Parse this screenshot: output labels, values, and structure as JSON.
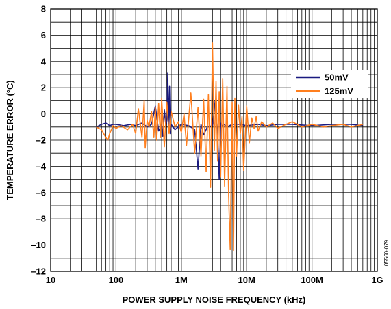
{
  "chart_data": {
    "type": "line",
    "xlabel": "POWER SUPPLY NOISE FREQUENCY (kHz)",
    "ylabel": "TEMPERATURE ERROR (°C)",
    "x_scale": "log",
    "xlim": [
      10,
      1000000
    ],
    "ylim": [
      -12,
      8
    ],
    "x_ticks": [
      10,
      100,
      1000,
      10000,
      100000,
      1000000
    ],
    "x_tick_labels": [
      "10",
      "100",
      "1M",
      "10M",
      "100M",
      "1G"
    ],
    "y_ticks": [
      -12,
      -10,
      -8,
      -6,
      -4,
      -2,
      0,
      2,
      4,
      6,
      8
    ],
    "y_tick_labels": [
      "–12",
      "–10",
      "–8",
      "–6",
      "–4",
      "–2",
      "0",
      "2",
      "4",
      "6",
      "8"
    ],
    "grid": true,
    "legend_position": "top-right",
    "figure_id": "05560-079",
    "series": [
      {
        "name": "50mV",
        "color": "#1a1a80",
        "x": [
          50,
          60,
          70,
          80,
          90,
          100,
          130,
          170,
          200,
          250,
          300,
          350,
          400,
          450,
          500,
          520,
          550,
          580,
          600,
          620,
          640,
          660,
          680,
          700,
          800,
          1000,
          1300,
          1600,
          1800,
          2000,
          2200,
          2500,
          3000,
          3300,
          3600,
          3800,
          4000,
          4200,
          4500,
          5000,
          6000,
          8000,
          10000,
          15000,
          20000,
          30000,
          50000,
          100000,
          200000,
          400000,
          600000
        ],
        "y": [
          -1.0,
          -0.8,
          -0.7,
          -0.9,
          -0.8,
          -0.8,
          -0.9,
          -0.8,
          -0.9,
          -0.7,
          -1.0,
          -0.8,
          0.6,
          -1.3,
          -0.8,
          -1.7,
          0.3,
          -0.9,
          -0.5,
          3.1,
          -1.1,
          2.1,
          -1.5,
          -0.8,
          -1.2,
          -0.8,
          -0.9,
          -1.2,
          -4.2,
          -0.8,
          -1.6,
          -1.0,
          -0.9,
          1.0,
          -1.5,
          -5.0,
          -0.7,
          -0.9,
          -0.8,
          -1.0,
          -0.8,
          -0.8,
          -0.9,
          -0.8,
          -0.9,
          -0.8,
          -0.8,
          -0.9,
          -0.8,
          -0.8,
          -0.9
        ]
      },
      {
        "name": "125mV",
        "color": "#ff7f1e",
        "x": [
          50,
          60,
          70,
          75,
          80,
          90,
          100,
          120,
          150,
          180,
          200,
          220,
          250,
          270,
          280,
          300,
          320,
          350,
          380,
          400,
          420,
          450,
          480,
          500,
          550,
          600,
          650,
          700,
          800,
          900,
          1000,
          1100,
          1200,
          1400,
          1600,
          1800,
          2000,
          2200,
          2400,
          2600,
          2800,
          3000,
          3200,
          3400,
          3600,
          3800,
          4000,
          4300,
          4600,
          5000,
          5300,
          5600,
          6000,
          6300,
          6600,
          7000,
          7500,
          8000,
          8500,
          9000,
          10000,
          11000,
          12000,
          13000,
          14000,
          15000,
          17000,
          20000,
          25000,
          30000,
          40000,
          50000,
          70000,
          100000,
          150000,
          200000,
          300000,
          400000,
          600000
        ],
        "y": [
          -1.0,
          -1.2,
          -1.8,
          -2.0,
          -1.5,
          -0.9,
          -1.1,
          -0.9,
          -1.2,
          -0.8,
          -1.5,
          0.4,
          -1.8,
          1.0,
          -2.6,
          -0.5,
          -1.0,
          0.2,
          -1.8,
          0.5,
          -2.0,
          0.8,
          -1.8,
          1.2,
          -2.5,
          0.9,
          -1.5,
          0.2,
          -1.0,
          -0.6,
          -1.4,
          0.0,
          -2.4,
          1.6,
          -3.0,
          0.5,
          -3.2,
          1.1,
          -4.4,
          1.5,
          -5.6,
          5.4,
          -2.8,
          2.5,
          -3.6,
          1.7,
          -4.8,
          2.7,
          -5.5,
          2.1,
          -6.2,
          -10.3,
          0.9,
          -10.4,
          1.2,
          -3.2,
          0.7,
          -1.5,
          -0.2,
          -4.3,
          0.6,
          -2.2,
          -0.3,
          -1.1,
          -0.2,
          -1.3,
          -0.6,
          -1.0,
          -0.7,
          -1.1,
          -0.8,
          -0.6,
          -1.0,
          -0.8,
          -1.0,
          -0.9,
          -0.8,
          -1.0,
          -0.8
        ]
      }
    ]
  }
}
